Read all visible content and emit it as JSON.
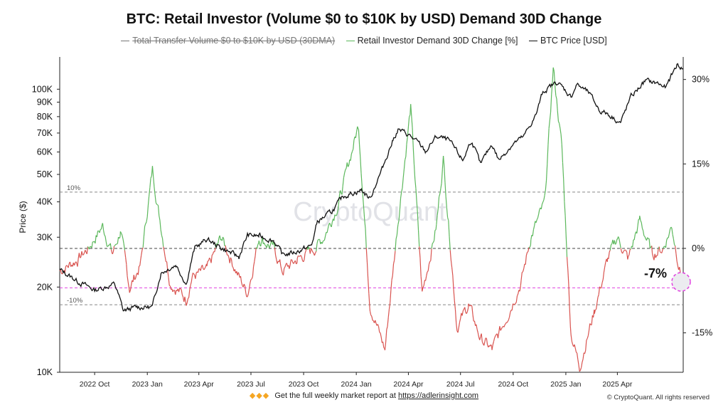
{
  "chart_data": {
    "type": "line",
    "title": "BTC: Retail Investor (Volume $0 to $10K by USD) Demand 30D Change",
    "legend": [
      {
        "label": "Total Transfer Volume  $0 to $10K by USD (30DMA)",
        "color": "#777777",
        "hidden": true
      },
      {
        "label": "Retail Investor Demand 30D Change [%]",
        "color": "#5cb85c",
        "hidden": false
      },
      {
        "label": "BTC Price [USD]",
        "color": "#111111",
        "hidden": false
      }
    ],
    "legend_placement": "top-center",
    "ylabel_left": "Price ($)",
    "y_left_scale": "log",
    "y_left_range": [
      10000,
      130000
    ],
    "y_left_ticks": [
      "10K",
      "20K",
      "30K",
      "40K",
      "50K",
      "60K",
      "70K",
      "80K",
      "90K",
      "100K"
    ],
    "y_right_range": [
      -22,
      34
    ],
    "y_right_ticks": [
      "30%",
      "15%",
      "0%",
      "-15%"
    ],
    "x_ticks": [
      "2022 Oct",
      "2023 Jan",
      "2023 Apr",
      "2023 Jul",
      "2023 Oct",
      "2024 Jan",
      "2024 Apr",
      "2024 Jul",
      "2024 Oct",
      "2025 Jan",
      "2025 Apr"
    ],
    "x_range": [
      "2022-08-01",
      "2025-07-25"
    ],
    "reference_lines": [
      {
        "value": 10,
        "label": "10%",
        "color": "#888888"
      },
      {
        "value": 0,
        "label": "",
        "color": "#444444"
      },
      {
        "value": -10,
        "label": "-10%",
        "color": "#888888"
      },
      {
        "value": -7,
        "label": "",
        "color": "#e040e0"
      }
    ],
    "callout": "-7%",
    "watermark": "CryptoQuant",
    "series": [
      {
        "name": "BTC Price [USD]",
        "color": "#111111",
        "x": [
          "2022-08-01",
          "2022-09-01",
          "2022-10-01",
          "2022-11-05",
          "2022-11-20",
          "2022-12-15",
          "2023-01-10",
          "2023-01-25",
          "2023-02-20",
          "2023-03-10",
          "2023-03-25",
          "2023-04-15",
          "2023-05-10",
          "2023-06-10",
          "2023-06-25",
          "2023-07-15",
          "2023-08-10",
          "2023-08-25",
          "2023-09-15",
          "2023-10-15",
          "2023-10-25",
          "2023-11-20",
          "2023-12-10",
          "2024-01-10",
          "2024-01-25",
          "2024-02-15",
          "2024-03-05",
          "2024-03-14",
          "2024-04-01",
          "2024-04-20",
          "2024-05-01",
          "2024-05-20",
          "2024-06-10",
          "2024-07-05",
          "2024-07-20",
          "2024-08-05",
          "2024-08-25",
          "2024-09-06",
          "2024-09-30",
          "2024-10-20",
          "2024-11-10",
          "2024-11-22",
          "2024-12-17",
          "2025-01-10",
          "2025-01-20",
          "2025-02-10",
          "2025-03-01",
          "2025-03-15",
          "2025-04-07",
          "2025-04-25",
          "2025-05-20",
          "2025-06-10",
          "2025-06-25",
          "2025-07-14",
          "2025-07-25"
        ],
        "y": [
          23000,
          21000,
          19500,
          20500,
          16500,
          17000,
          17000,
          22500,
          24000,
          20500,
          27500,
          29500,
          27500,
          25500,
          30500,
          30300,
          29200,
          26000,
          26500,
          28000,
          34000,
          37000,
          42000,
          44000,
          41000,
          52000,
          66000,
          72000,
          69000,
          64000,
          60000,
          68000,
          66000,
          56000,
          66000,
          54000,
          64000,
          56000,
          64000,
          68000,
          81000,
          98000,
          106000,
          94000,
          104000,
          97000,
          84000,
          82000,
          76000,
          94000,
          107000,
          105000,
          101000,
          122000,
          118000
        ]
      },
      {
        "name": "Retail Investor Demand 30D Change [%]",
        "color_positive": "#5cb85c",
        "color_negative": "#d9534f",
        "x": [
          "2022-08-01",
          "2022-09-01",
          "2022-09-20",
          "2022-10-15",
          "2022-11-01",
          "2022-11-15",
          "2022-12-01",
          "2022-12-20",
          "2023-01-10",
          "2023-01-20",
          "2023-02-10",
          "2023-03-10",
          "2023-03-20",
          "2023-04-15",
          "2023-05-10",
          "2023-06-10",
          "2023-06-25",
          "2023-07-15",
          "2023-08-10",
          "2023-08-25",
          "2023-09-20",
          "2023-10-20",
          "2023-11-05",
          "2023-12-01",
          "2024-01-05",
          "2024-01-25",
          "2024-02-20",
          "2024-03-14",
          "2024-04-05",
          "2024-04-25",
          "2024-05-20",
          "2024-06-01",
          "2024-06-25",
          "2024-07-15",
          "2024-08-05",
          "2024-08-25",
          "2024-09-20",
          "2024-10-15",
          "2024-11-01",
          "2024-11-25",
          "2024-12-10",
          "2024-12-25",
          "2025-01-10",
          "2025-01-25",
          "2025-02-20",
          "2025-03-15",
          "2025-04-01",
          "2025-04-20",
          "2025-05-10",
          "2025-06-01",
          "2025-06-20",
          "2025-07-05",
          "2025-07-25"
        ],
        "y": [
          -4,
          -2,
          0,
          4,
          -1,
          3,
          -7,
          -3,
          14,
          7,
          -6,
          -9,
          -5,
          -4,
          2,
          -5,
          -8,
          2,
          0,
          -4,
          -2,
          0,
          2,
          8,
          22,
          -10,
          -18,
          5,
          25,
          -8,
          4,
          16,
          -14,
          -10,
          -16,
          -18,
          -12,
          -6,
          2,
          8,
          32,
          18,
          -15,
          -21,
          -11,
          -2,
          2,
          -2,
          5,
          -1,
          0,
          4,
          -7
        ]
      }
    ]
  },
  "footer": {
    "emoji": "◆◆◆",
    "text": "Get the full weekly market report at",
    "link": "https://adlerinsight.com",
    "copyright": "© CryptoQuant. All rights reserved"
  }
}
